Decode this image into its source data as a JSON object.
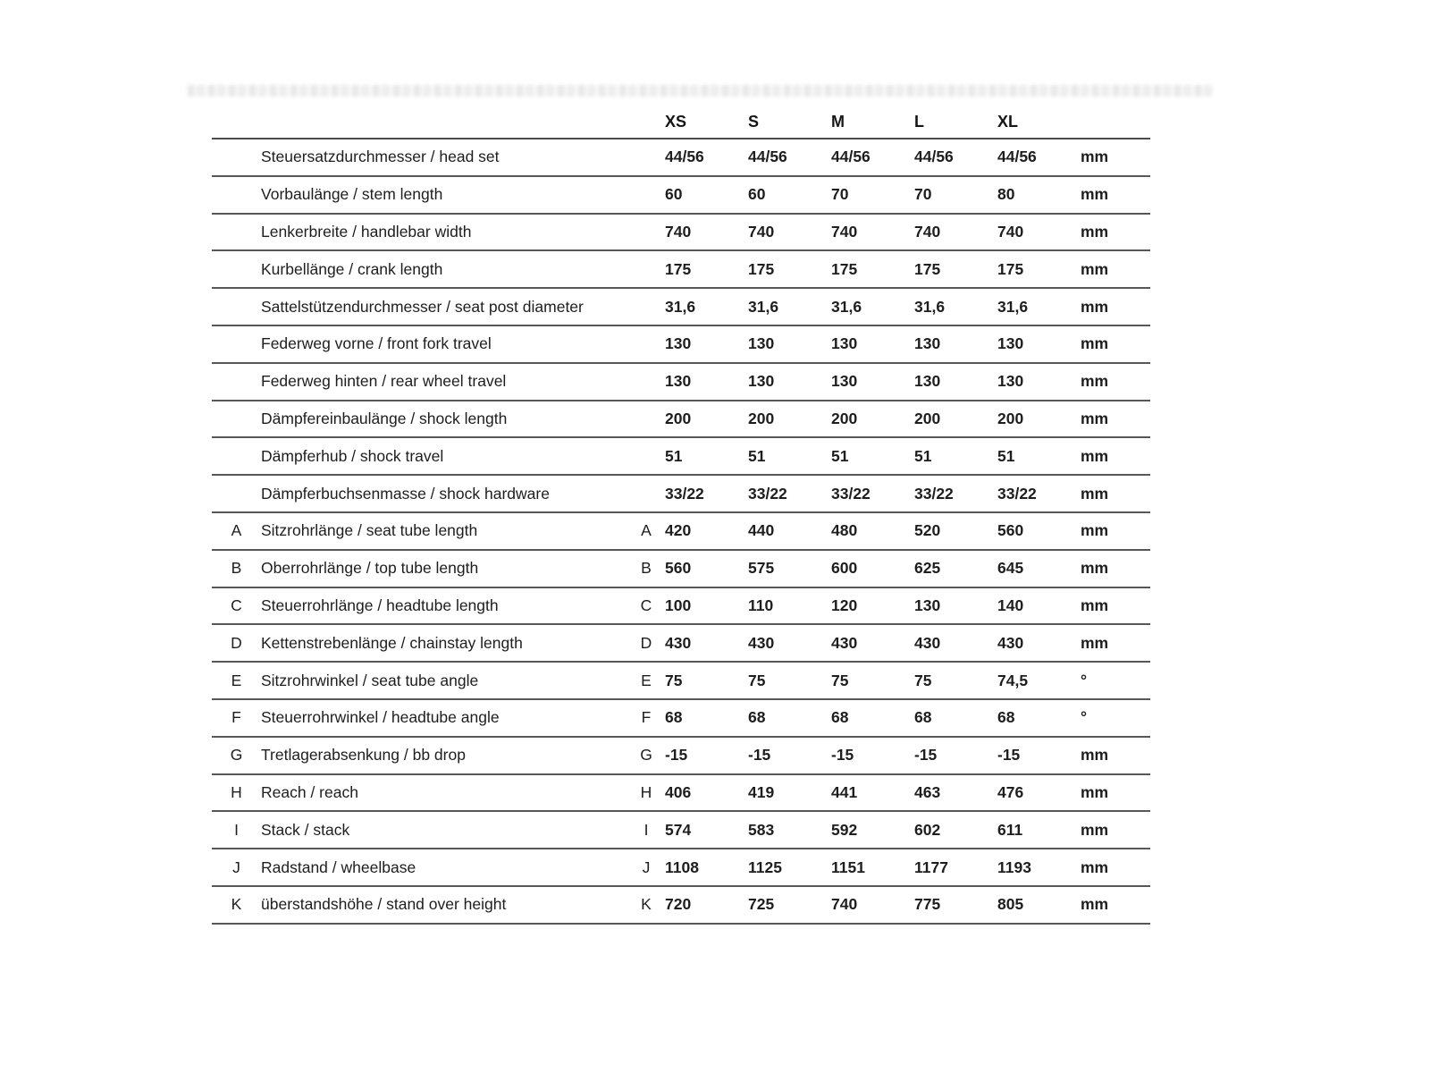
{
  "table": {
    "size_headers": [
      "XS",
      "S",
      "M",
      "L",
      "XL"
    ],
    "rows": [
      {
        "letter": "",
        "label": "Steuersatzdurchmesser / head set",
        "values": [
          "44/56",
          "44/56",
          "44/56",
          "44/56",
          "44/56"
        ],
        "unit": "mm"
      },
      {
        "letter": "",
        "label": "Vorbaulänge / stem length",
        "values": [
          "60",
          "60",
          "70",
          "70",
          "80"
        ],
        "unit": "mm"
      },
      {
        "letter": "",
        "label": "Lenkerbreite / handlebar width",
        "values": [
          "740",
          "740",
          "740",
          "740",
          "740"
        ],
        "unit": "mm"
      },
      {
        "letter": "",
        "label": "Kurbellänge / crank length",
        "values": [
          "175",
          "175",
          "175",
          "175",
          "175"
        ],
        "unit": "mm"
      },
      {
        "letter": "",
        "label": "Sattelstützendurchmesser / seat post diameter",
        "values": [
          "31,6",
          "31,6",
          "31,6",
          "31,6",
          "31,6"
        ],
        "unit": "mm"
      },
      {
        "letter": "",
        "label": "Federweg vorne / front fork travel",
        "values": [
          "130",
          "130",
          "130",
          "130",
          "130"
        ],
        "unit": "mm"
      },
      {
        "letter": "",
        "label": "Federweg hinten / rear wheel travel",
        "values": [
          "130",
          "130",
          "130",
          "130",
          "130"
        ],
        "unit": "mm"
      },
      {
        "letter": "",
        "label": "Dämpfereinbaulänge / shock length",
        "values": [
          "200",
          "200",
          "200",
          "200",
          "200"
        ],
        "unit": "mm"
      },
      {
        "letter": "",
        "label": "Dämpferhub / shock travel",
        "values": [
          "51",
          "51",
          "51",
          "51",
          "51"
        ],
        "unit": "mm"
      },
      {
        "letter": "",
        "label": "Dämpferbuchsenmasse / shock hardware",
        "values": [
          "33/22",
          "33/22",
          "33/22",
          "33/22",
          "33/22"
        ],
        "unit": "mm"
      },
      {
        "letter": "A",
        "label": "Sitzrohrlänge / seat tube length",
        "values": [
          "420",
          "440",
          "480",
          "520",
          "560"
        ],
        "unit": "mm"
      },
      {
        "letter": "B",
        "label": "Oberrohrlänge / top tube length",
        "values": [
          "560",
          "575",
          "600",
          "625",
          "645"
        ],
        "unit": "mm"
      },
      {
        "letter": "C",
        "label": "Steuerrohrlänge / headtube length",
        "values": [
          "100",
          "110",
          "120",
          "130",
          "140"
        ],
        "unit": "mm"
      },
      {
        "letter": "D",
        "label": "Kettenstrebenlänge / chainstay length",
        "values": [
          "430",
          "430",
          "430",
          "430",
          "430"
        ],
        "unit": "mm"
      },
      {
        "letter": "E",
        "label": "Sitzrohrwinkel / seat tube angle",
        "values": [
          "75",
          "75",
          "75",
          "75",
          "74,5"
        ],
        "unit": "°"
      },
      {
        "letter": "F",
        "label": "Steuerrohrwinkel / headtube angle",
        "values": [
          "68",
          "68",
          "68",
          "68",
          "68"
        ],
        "unit": "°"
      },
      {
        "letter": "G",
        "label": "Tretlagerabsenkung / bb drop",
        "values": [
          "-15",
          "-15",
          "-15",
          "-15",
          "-15"
        ],
        "unit": "mm"
      },
      {
        "letter": "H",
        "label": "Reach / reach",
        "values": [
          "406",
          "419",
          "441",
          "463",
          "476"
        ],
        "unit": "mm"
      },
      {
        "letter": "I",
        "label": "Stack / stack",
        "values": [
          "574",
          "583",
          "592",
          "602",
          "611"
        ],
        "unit": "mm"
      },
      {
        "letter": "J",
        "label": "Radstand / wheelbase",
        "values": [
          "1108",
          "1125",
          "1151",
          "1177",
          "1193"
        ],
        "unit": "mm"
      },
      {
        "letter": "K",
        "label": "überstandshöhe / stand over height",
        "values": [
          "720",
          "725",
          "740",
          "775",
          "805"
        ],
        "unit": "mm"
      }
    ]
  }
}
